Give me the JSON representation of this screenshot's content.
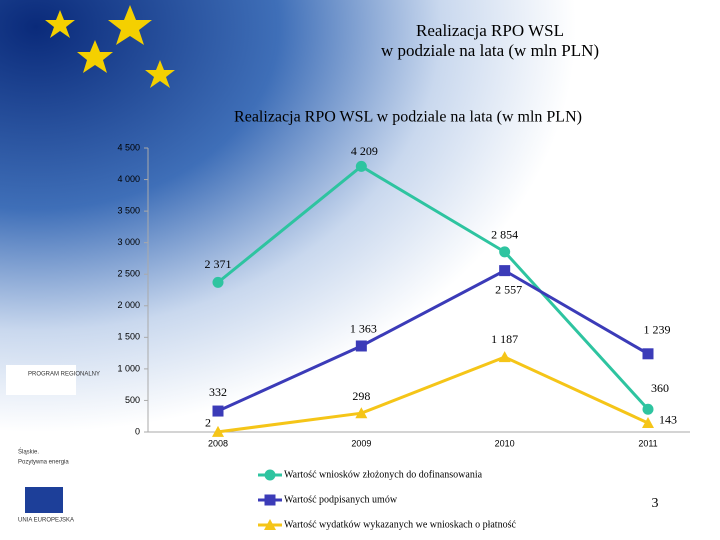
{
  "slide": {
    "title_line1": "Realizacja RPO WSL",
    "title_line2": "w podziale na lata (w mln PLN)",
    "page_number": "3",
    "logo_program": "PROGRAM REGIONALNY",
    "logo_slaskie": "Śląskie.",
    "logo_slaskie_sub": "Pozytywna energia",
    "logo_eu": "UNIA EUROPEJSKA"
  },
  "chart_data": {
    "type": "line",
    "title": "Realizacja RPO WSL w podziale na lata (w mln PLN)",
    "categories": [
      "2008",
      "2009",
      "2010",
      "2011"
    ],
    "ylim": [
      0,
      4500
    ],
    "yticks": [
      {
        "value": 0,
        "label": "0"
      },
      {
        "value": 500,
        "label": "500"
      },
      {
        "value": 1000,
        "label": "1 000"
      },
      {
        "value": 1500,
        "label": "1 500"
      },
      {
        "value": 2000,
        "label": "2 000"
      },
      {
        "value": 2500,
        "label": "2 500"
      },
      {
        "value": 3000,
        "label": "3 000"
      },
      {
        "value": 3500,
        "label": "3 500"
      },
      {
        "value": 4000,
        "label": "4 000"
      },
      {
        "value": 4500,
        "label": "4 500"
      }
    ],
    "legend": "bottom",
    "series": [
      {
        "name": "Wartość wniosków złożonych do dofinansowania",
        "color": "#2ec4a0",
        "marker": "circle",
        "values": [
          2371,
          4209,
          2854,
          360
        ],
        "value_labels": [
          "2 371",
          "4 209",
          "2 854",
          "360"
        ]
      },
      {
        "name": "Wartość podpisanych umów",
        "color": "#3b3bb8",
        "marker": "square",
        "values": [
          332,
          1363,
          2557,
          1239
        ],
        "value_labels": [
          "332",
          "1 363",
          "2 557",
          "1 239"
        ]
      },
      {
        "name": "Wartość wydatków wykazanych we wnioskach o płatność",
        "color": "#f5c518",
        "marker": "triangle",
        "values": [
          2,
          298,
          1187,
          143
        ],
        "value_labels": [
          "2",
          "298",
          "1 187",
          "143"
        ]
      }
    ]
  }
}
